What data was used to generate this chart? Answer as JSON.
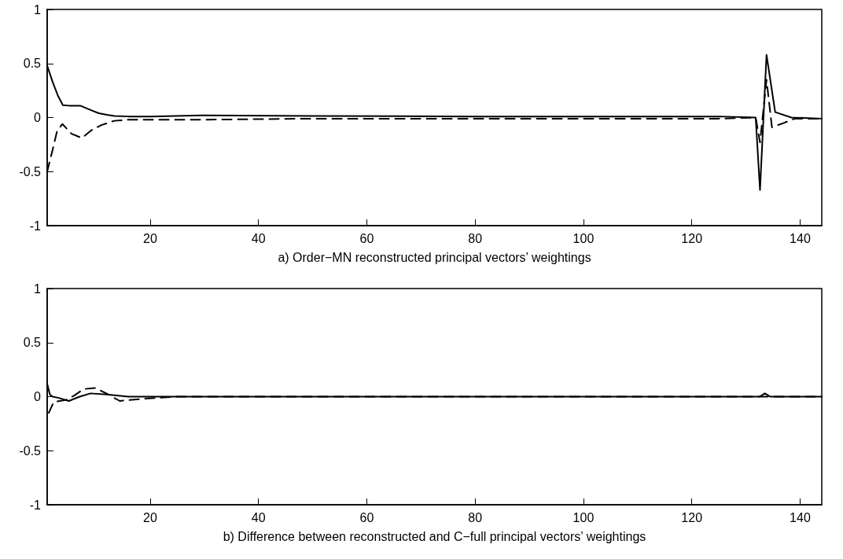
{
  "chart_data": [
    {
      "type": "line",
      "xlabel": "a) Order−MN reconstructed principal vectors’ weightings",
      "xlim": [
        1,
        144
      ],
      "xticks": [
        20,
        40,
        60,
        80,
        100,
        120,
        140
      ],
      "ylim": [
        -1,
        1
      ],
      "yticks": [
        -1,
        -0.5,
        0,
        0.5,
        1
      ],
      "grid": false,
      "marker": "none",
      "series": [
        {
          "color": "#000000",
          "line_style": "solid",
          "x": [
            1,
            2,
            3,
            3.9,
            5,
            7.1,
            9,
            10.5,
            12,
            13.4,
            16,
            20,
            30,
            50,
            80,
            110,
            125,
            131.8,
            132.6,
            133.8,
            135.4,
            138.4,
            144
          ],
          "values": [
            0.48,
            0.33,
            0.2,
            0.115,
            0.11,
            0.11,
            0.07,
            0.04,
            0.025,
            0.015,
            0.01,
            0.01,
            0.02,
            0.015,
            0.01,
            0.01,
            0.01,
            0,
            -0.67,
            0.58,
            0.05,
            0,
            -0.01
          ]
        },
        {
          "color": "#000000",
          "line_style": "dashed",
          "x": [
            1,
            2,
            2.8,
            3.8,
            5.5,
            7.4,
            9.1,
            11,
            13.4,
            16,
            20,
            30,
            50,
            80,
            110,
            125,
            131.8,
            132.6,
            133.8,
            134.8,
            137,
            139,
            144
          ],
          "values": [
            -0.5,
            -0.3,
            -0.13,
            -0.06,
            -0.15,
            -0.19,
            -0.12,
            -0.07,
            -0.03,
            -0.02,
            -0.02,
            -0.02,
            -0.01,
            -0.01,
            -0.01,
            -0.01,
            0,
            -0.23,
            0.35,
            -0.09,
            -0.05,
            -0.01,
            -0.01
          ]
        }
      ]
    },
    {
      "type": "line",
      "xlabel": "b) Difference between reconstructed and C−full principal vectors’ weightings",
      "xlim": [
        1,
        144
      ],
      "xticks": [
        20,
        40,
        60,
        80,
        100,
        120,
        140
      ],
      "ylim": [
        -1,
        1
      ],
      "yticks": [
        -1,
        -0.5,
        0,
        0.5,
        1
      ],
      "grid": false,
      "marker": "none",
      "series": [
        {
          "color": "#000000",
          "line_style": "solid",
          "x": [
            1,
            1.5,
            2,
            3,
            5,
            7,
            9,
            12,
            16,
            20,
            40,
            80,
            120,
            132.5,
            133.5,
            134.5,
            144
          ],
          "values": [
            0.12,
            0.02,
            0,
            -0.01,
            -0.04,
            0,
            0.03,
            0.02,
            0,
            0,
            0,
            0,
            0,
            0,
            0.03,
            0,
            0
          ]
        },
        {
          "color": "#000000",
          "line_style": "dashed",
          "x": [
            1.3,
            2.2,
            4.5,
            6,
            7.7,
            9.9,
            12.3,
            14.4,
            18.7,
            25,
            60,
            100,
            144
          ],
          "values": [
            -0.15,
            -0.05,
            -0.03,
            0.01,
            0.07,
            0.08,
            0.02,
            -0.04,
            -0.02,
            0,
            0,
            0,
            0
          ]
        }
      ]
    }
  ]
}
